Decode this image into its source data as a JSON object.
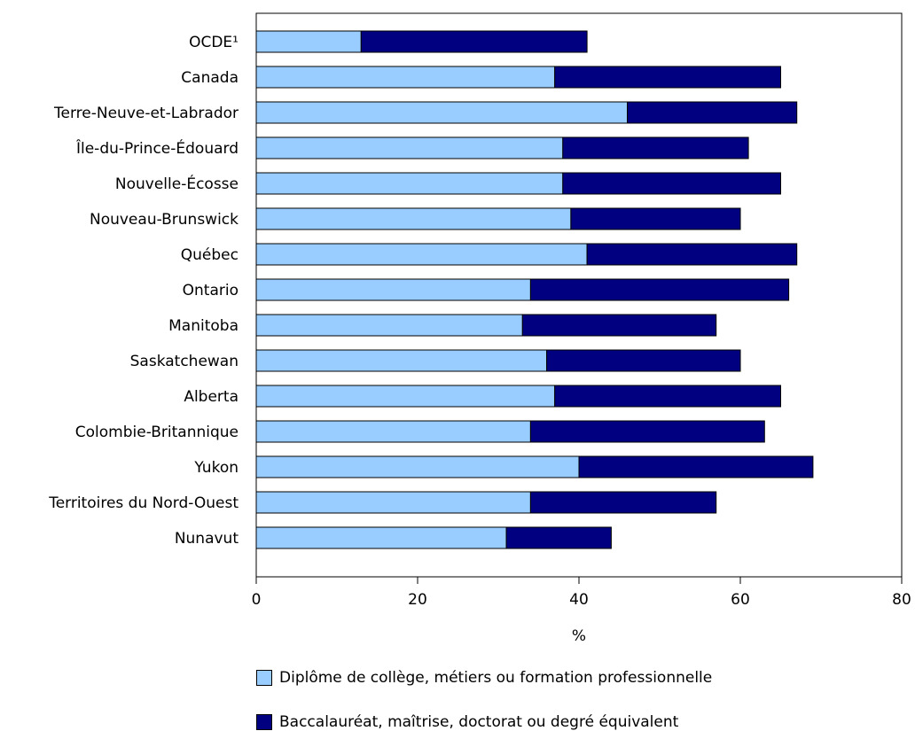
{
  "chart_data": {
    "type": "bar",
    "orientation": "horizontal",
    "stacked": true,
    "categories": [
      "OCDE¹",
      "Canada",
      "Terre-Neuve-et-Labrador",
      "Île-du-Prince-Édouard",
      "Nouvelle-Écosse",
      "Nouveau-Brunswick",
      "Québec",
      "Ontario",
      "Manitoba",
      "Saskatchewan",
      "Alberta",
      "Colombie-Britannique",
      "Yukon",
      "Territoires du Nord-Ouest",
      "Nunavut"
    ],
    "series": [
      {
        "name": "Diplôme de collège, métiers ou formation professionnelle",
        "color": "#99ccff",
        "values": [
          13,
          37,
          46,
          38,
          38,
          39,
          41,
          34,
          33,
          36,
          37,
          34,
          40,
          34,
          31
        ]
      },
      {
        "name": "Baccalauréat, maîtrise, doctorat ou degré équivalent",
        "color": "#000080",
        "values": [
          28,
          28,
          21,
          23,
          27,
          21,
          26,
          32,
          24,
          24,
          28,
          29,
          29,
          23,
          13
        ]
      }
    ],
    "xlabel": "%",
    "xlim": [
      0,
      80
    ],
    "xticks": [
      0,
      20,
      40,
      60,
      80
    ],
    "grid": false,
    "legend_position": "bottom"
  }
}
